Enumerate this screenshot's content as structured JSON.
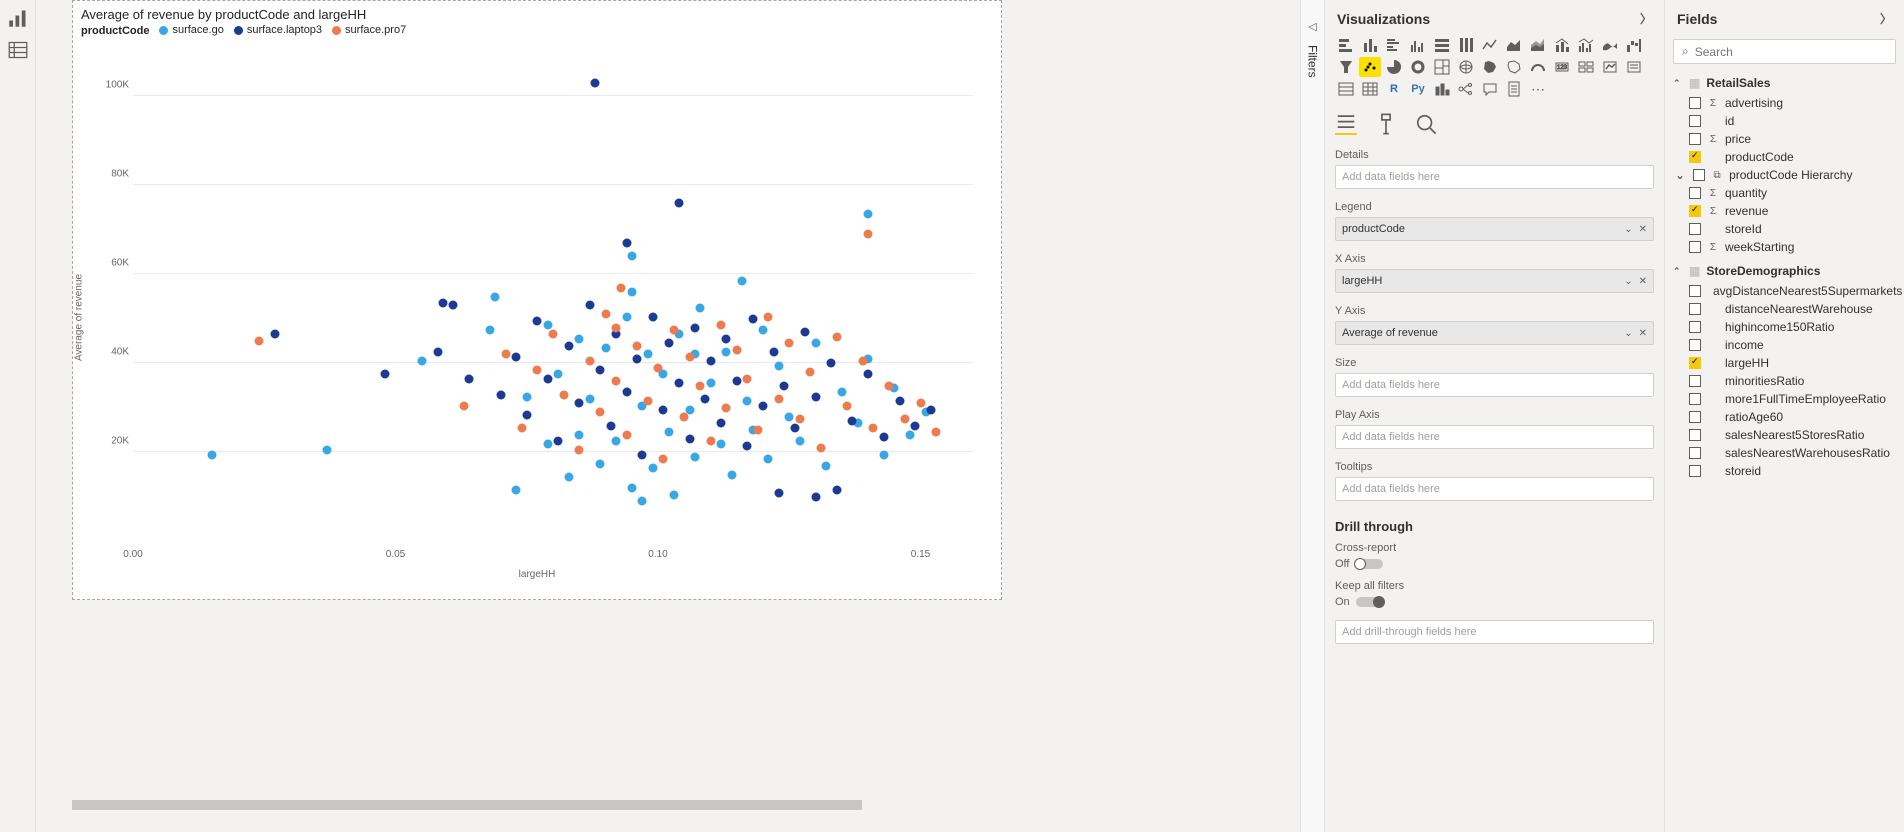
{
  "leftRail": {
    "icons": [
      "report-view",
      "data-view"
    ]
  },
  "chart": {
    "type": "scatter",
    "title": "Average of revenue by productCode and largeHH",
    "legendTitle": "productCode",
    "series": [
      {
        "name": "surface.go",
        "color": "#37a7e5"
      },
      {
        "name": "surface.laptop3",
        "color": "#1b3a93"
      },
      {
        "name": "surface.pro7",
        "color": "#ee7b4d"
      }
    ],
    "xAxisTitle": "largeHH",
    "yAxisTitle": "Average of revenue",
    "xlim": [
      0,
      0.16
    ],
    "ylim": [
      0,
      110000
    ],
    "xticks": [
      {
        "v": 0.0,
        "label": "0.00"
      },
      {
        "v": 0.05,
        "label": "0.05"
      },
      {
        "v": 0.1,
        "label": "0.10"
      },
      {
        "v": 0.15,
        "label": "0.15"
      }
    ],
    "yticks": [
      {
        "v": 20000,
        "label": "20K"
      },
      {
        "v": 40000,
        "label": "40K"
      },
      {
        "v": 60000,
        "label": "60K"
      },
      {
        "v": 80000,
        "label": "80K"
      },
      {
        "v": 100000,
        "label": "100K"
      }
    ],
    "points": {
      "surface.go": [
        [
          0.015,
          19500
        ],
        [
          0.037,
          20500
        ],
        [
          0.055,
          40500
        ],
        [
          0.068,
          47500
        ],
        [
          0.073,
          11500
        ],
        [
          0.075,
          32500
        ],
        [
          0.079,
          22000
        ],
        [
          0.079,
          48500
        ],
        [
          0.081,
          37500
        ],
        [
          0.083,
          14500
        ],
        [
          0.085,
          24000
        ],
        [
          0.085,
          45500
        ],
        [
          0.087,
          32000
        ],
        [
          0.089,
          17500
        ],
        [
          0.09,
          43500
        ],
        [
          0.092,
          22500
        ],
        [
          0.094,
          50500
        ],
        [
          0.095,
          12000
        ],
        [
          0.095,
          64000
        ],
        [
          0.097,
          30500
        ],
        [
          0.098,
          42000
        ],
        [
          0.099,
          16500
        ],
        [
          0.101,
          37500
        ],
        [
          0.102,
          24500
        ],
        [
          0.103,
          10500
        ],
        [
          0.104,
          46500
        ],
        [
          0.106,
          29500
        ],
        [
          0.107,
          19000
        ],
        [
          0.108,
          52500
        ],
        [
          0.11,
          35500
        ],
        [
          0.112,
          22000
        ],
        [
          0.113,
          42500
        ],
        [
          0.114,
          15000
        ],
        [
          0.116,
          58500
        ],
        [
          0.117,
          31500
        ],
        [
          0.118,
          25000
        ],
        [
          0.12,
          47500
        ],
        [
          0.121,
          18500
        ],
        [
          0.123,
          39500
        ],
        [
          0.125,
          28000
        ],
        [
          0.127,
          22500
        ],
        [
          0.13,
          44500
        ],
        [
          0.132,
          17000
        ],
        [
          0.135,
          33500
        ],
        [
          0.138,
          26500
        ],
        [
          0.14,
          73500
        ],
        [
          0.14,
          41000
        ],
        [
          0.143,
          19500
        ],
        [
          0.145,
          34500
        ],
        [
          0.148,
          24000
        ],
        [
          0.151,
          29000
        ],
        [
          0.069,
          55000
        ],
        [
          0.095,
          56000
        ],
        [
          0.107,
          42000
        ],
        [
          0.097,
          9000
        ]
      ],
      "surface.laptop3": [
        [
          0.027,
          46500
        ],
        [
          0.058,
          42500
        ],
        [
          0.059,
          53500
        ],
        [
          0.061,
          53000
        ],
        [
          0.064,
          36500
        ],
        [
          0.07,
          33000
        ],
        [
          0.073,
          41500
        ],
        [
          0.075,
          28500
        ],
        [
          0.077,
          49500
        ],
        [
          0.079,
          36500
        ],
        [
          0.081,
          22500
        ],
        [
          0.083,
          44000
        ],
        [
          0.085,
          31000
        ],
        [
          0.087,
          53000
        ],
        [
          0.088,
          103000
        ],
        [
          0.089,
          38500
        ],
        [
          0.091,
          26000
        ],
        [
          0.092,
          46500
        ],
        [
          0.094,
          33500
        ],
        [
          0.096,
          41000
        ],
        [
          0.097,
          19500
        ],
        [
          0.099,
          50500
        ],
        [
          0.101,
          29500
        ],
        [
          0.102,
          44500
        ],
        [
          0.104,
          35500
        ],
        [
          0.104,
          76000
        ],
        [
          0.106,
          23000
        ],
        [
          0.107,
          48000
        ],
        [
          0.109,
          32000
        ],
        [
          0.11,
          40500
        ],
        [
          0.112,
          26500
        ],
        [
          0.094,
          67000
        ],
        [
          0.113,
          45500
        ],
        [
          0.115,
          36000
        ],
        [
          0.117,
          21500
        ],
        [
          0.118,
          50000
        ],
        [
          0.12,
          30500
        ],
        [
          0.122,
          42500
        ],
        [
          0.123,
          11000
        ],
        [
          0.124,
          35000
        ],
        [
          0.126,
          25500
        ],
        [
          0.128,
          47000
        ],
        [
          0.13,
          32500
        ],
        [
          0.133,
          40000
        ],
        [
          0.137,
          27000
        ],
        [
          0.14,
          37500
        ],
        [
          0.143,
          23500
        ],
        [
          0.146,
          31500
        ],
        [
          0.149,
          26000
        ],
        [
          0.152,
          29500
        ],
        [
          0.13,
          10000
        ],
        [
          0.134,
          11500
        ],
        [
          0.048,
          37500
        ]
      ],
      "surface.pro7": [
        [
          0.024,
          45000
        ],
        [
          0.063,
          30500
        ],
        [
          0.071,
          42000
        ],
        [
          0.074,
          25500
        ],
        [
          0.077,
          38500
        ],
        [
          0.08,
          46500
        ],
        [
          0.082,
          33000
        ],
        [
          0.085,
          20500
        ],
        [
          0.087,
          40500
        ],
        [
          0.089,
          29000
        ],
        [
          0.09,
          51000
        ],
        [
          0.092,
          36000
        ],
        [
          0.093,
          57000
        ],
        [
          0.094,
          24000
        ],
        [
          0.096,
          44000
        ],
        [
          0.098,
          31500
        ],
        [
          0.1,
          39000
        ],
        [
          0.101,
          18500
        ],
        [
          0.103,
          47500
        ],
        [
          0.105,
          28000
        ],
        [
          0.106,
          41500
        ],
        [
          0.108,
          35000
        ],
        [
          0.11,
          22500
        ],
        [
          0.112,
          48500
        ],
        [
          0.113,
          30000
        ],
        [
          0.115,
          43000
        ],
        [
          0.117,
          36500
        ],
        [
          0.119,
          25000
        ],
        [
          0.121,
          50500
        ],
        [
          0.123,
          32000
        ],
        [
          0.125,
          44500
        ],
        [
          0.127,
          27500
        ],
        [
          0.129,
          38000
        ],
        [
          0.131,
          21000
        ],
        [
          0.134,
          46000
        ],
        [
          0.136,
          30500
        ],
        [
          0.139,
          40500
        ],
        [
          0.141,
          25500
        ],
        [
          0.14,
          69000
        ],
        [
          0.144,
          35000
        ],
        [
          0.147,
          27500
        ],
        [
          0.15,
          31000
        ],
        [
          0.153,
          24500
        ],
        [
          0.092,
          48000
        ]
      ]
    }
  },
  "filtersTab": {
    "label": "Filters"
  },
  "vizPane": {
    "title": "Visualizations",
    "gallery": [
      "stacked-bar",
      "stacked-column",
      "clustered-bar",
      "clustered-column",
      "100-bar",
      "100-column",
      "line",
      "area",
      "stacked-area",
      "line-stacked",
      "line-clustered",
      "ribbon",
      "waterfall",
      "funnel",
      "scatter",
      "pie",
      "donut",
      "treemap",
      "map",
      "filled-map",
      "shape-map",
      "gauge",
      "card",
      "multi-card",
      "kpi",
      "slicer",
      "table",
      "matrix",
      "r",
      "py",
      "key-influencers",
      "decomposition",
      "qna",
      "paginated",
      "more"
    ],
    "selectedViz": "scatter",
    "formatTabs": [
      "fields",
      "format",
      "analytics"
    ],
    "wells": [
      {
        "name": "Details",
        "value": "",
        "placeholder": "Add data fields here"
      },
      {
        "name": "Legend",
        "value": "productCode",
        "placeholder": ""
      },
      {
        "name": "X Axis",
        "value": "largeHH",
        "placeholder": ""
      },
      {
        "name": "Y Axis",
        "value": "Average of revenue",
        "placeholder": ""
      },
      {
        "name": "Size",
        "value": "",
        "placeholder": "Add data fields here"
      },
      {
        "name": "Play Axis",
        "value": "",
        "placeholder": "Add data fields here"
      },
      {
        "name": "Tooltips",
        "value": "",
        "placeholder": "Add data fields here"
      }
    ],
    "drillThrough": {
      "title": "Drill through",
      "crossReport": {
        "label": "Cross-report",
        "state": "Off"
      },
      "keepFilters": {
        "label": "Keep all filters",
        "state": "On"
      },
      "placeholder": "Add drill-through fields here"
    }
  },
  "fieldsPane": {
    "title": "Fields",
    "searchPlaceholder": "Search",
    "tables": [
      {
        "name": "RetailSales",
        "expanded": true,
        "fields": [
          {
            "name": "advertising",
            "checked": false,
            "icon": "Σ"
          },
          {
            "name": "id",
            "checked": false,
            "icon": ""
          },
          {
            "name": "price",
            "checked": false,
            "icon": "Σ"
          },
          {
            "name": "productCode",
            "checked": true,
            "icon": ""
          },
          {
            "name": "productCode Hierarchy",
            "checked": false,
            "icon": "⧉",
            "hierarchy": true
          },
          {
            "name": "quantity",
            "checked": false,
            "icon": "Σ"
          },
          {
            "name": "revenue",
            "checked": true,
            "icon": "Σ"
          },
          {
            "name": "storeId",
            "checked": false,
            "icon": ""
          },
          {
            "name": "weekStarting",
            "checked": false,
            "icon": "Σ"
          }
        ]
      },
      {
        "name": "StoreDemographics",
        "expanded": true,
        "fields": [
          {
            "name": "avgDistanceNearest5Supermarkets",
            "checked": false,
            "icon": ""
          },
          {
            "name": "distanceNearestWarehouse",
            "checked": false,
            "icon": ""
          },
          {
            "name": "highincome150Ratio",
            "checked": false,
            "icon": ""
          },
          {
            "name": "income",
            "checked": false,
            "icon": ""
          },
          {
            "name": "largeHH",
            "checked": true,
            "icon": ""
          },
          {
            "name": "minoritiesRatio",
            "checked": false,
            "icon": ""
          },
          {
            "name": "more1FullTimeEmployeeRatio",
            "checked": false,
            "icon": ""
          },
          {
            "name": "ratioAge60",
            "checked": false,
            "icon": ""
          },
          {
            "name": "salesNearest5StoresRatio",
            "checked": false,
            "icon": ""
          },
          {
            "name": "salesNearestWarehousesRatio",
            "checked": false,
            "icon": ""
          },
          {
            "name": "storeid",
            "checked": false,
            "icon": ""
          }
        ]
      }
    ]
  }
}
